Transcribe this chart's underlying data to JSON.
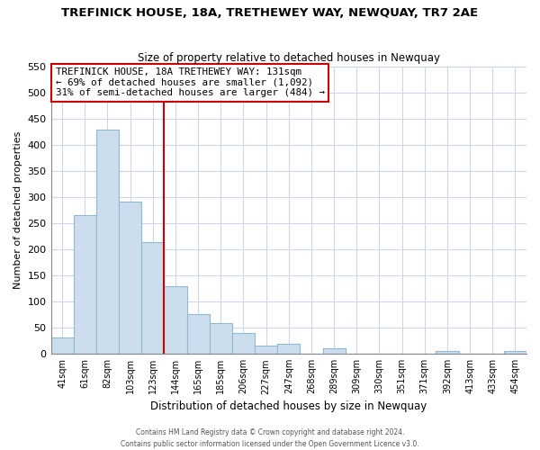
{
  "title": "TREFINICK HOUSE, 18A, TRETHEWEY WAY, NEWQUAY, TR7 2AE",
  "subtitle": "Size of property relative to detached houses in Newquay",
  "xlabel": "Distribution of detached houses by size in Newquay",
  "ylabel": "Number of detached properties",
  "bar_labels": [
    "41sqm",
    "61sqm",
    "82sqm",
    "103sqm",
    "123sqm",
    "144sqm",
    "165sqm",
    "185sqm",
    "206sqm",
    "227sqm",
    "247sqm",
    "268sqm",
    "289sqm",
    "309sqm",
    "330sqm",
    "351sqm",
    "371sqm",
    "392sqm",
    "413sqm",
    "433sqm",
    "454sqm"
  ],
  "bar_heights": [
    32,
    265,
    428,
    291,
    214,
    130,
    76,
    59,
    40,
    15,
    20,
    0,
    10,
    0,
    0,
    0,
    0,
    5,
    0,
    0,
    5
  ],
  "bar_color": "#ccdded",
  "bar_edge_color": "#90b8d0",
  "vline_x": 4.5,
  "vline_color": "#cc0000",
  "annotation_title": "TREFINICK HOUSE, 18A TRETHEWEY WAY: 131sqm",
  "annotation_line1": "← 69% of detached houses are smaller (1,092)",
  "annotation_line2": "31% of semi-detached houses are larger (484) →",
  "annotation_box_color": "#ffffff",
  "annotation_box_edge": "#cc0000",
  "ylim": [
    0,
    550
  ],
  "yticks": [
    0,
    50,
    100,
    150,
    200,
    250,
    300,
    350,
    400,
    450,
    500,
    550
  ],
  "footer_line1": "Contains HM Land Registry data © Crown copyright and database right 2024.",
  "footer_line2": "Contains public sector information licensed under the Open Government Licence v3.0.",
  "background_color": "#ffffff",
  "grid_color": "#ccd8e8"
}
